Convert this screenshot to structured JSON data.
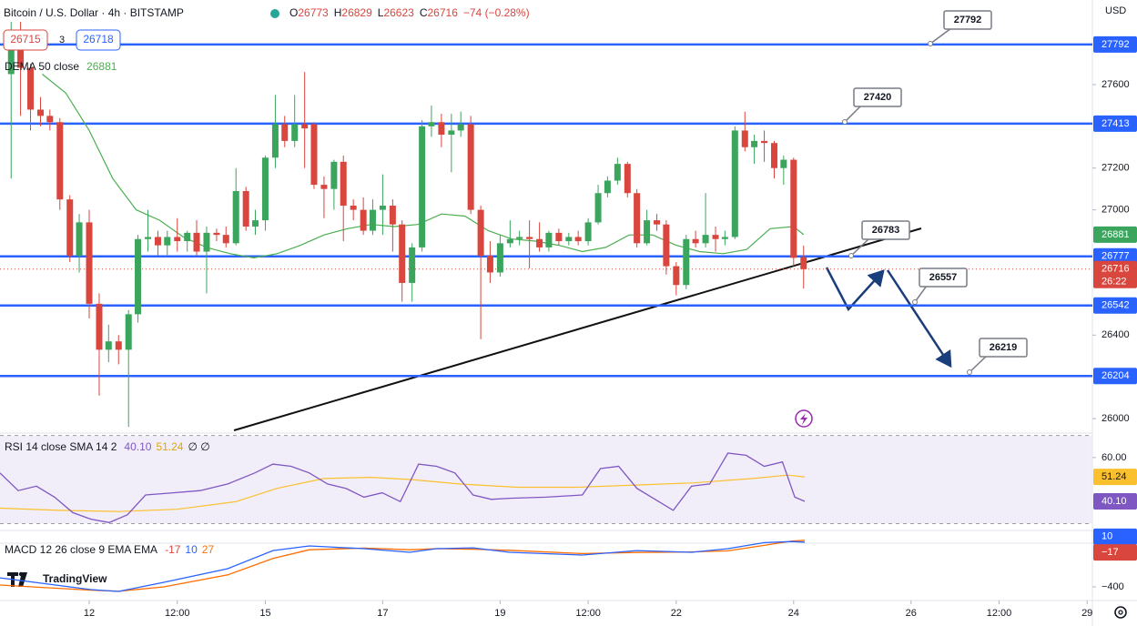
{
  "chart_data": {
    "type": "candlestick",
    "title": "Bitcoin / U.S. Dollar · 4h · BITSTAMP",
    "ohlc_labels": [
      "O",
      "H",
      "L",
      "C"
    ],
    "change": "−74 (−0.28%)",
    "bid": 26715,
    "spread": 3,
    "ask": 26718,
    "currency": "USD",
    "countdown": "26:22",
    "brand": "TradingView",
    "up_color": "#3ba55d",
    "down_color": "#d9463e",
    "x": [
      10.67,
      10.83,
      11,
      11.17,
      11.33,
      11.5,
      11.67,
      11.83,
      12,
      12.17,
      12.33,
      12.5,
      12.67,
      12.83,
      13,
      13.17,
      13.33,
      13.5,
      13.67,
      13.83,
      14,
      14.17,
      14.33,
      14.5,
      14.67,
      14.83,
      15,
      15.17,
      15.33,
      15.5,
      15.67,
      15.83,
      16,
      16.17,
      16.33,
      16.5,
      16.67,
      16.83,
      17,
      17.17,
      17.33,
      17.5,
      17.67,
      17.83,
      18,
      18.17,
      18.33,
      18.5,
      18.67,
      18.83,
      19,
      19.17,
      19.33,
      19.5,
      19.67,
      19.83,
      20,
      20.17,
      20.33,
      20.5,
      20.67,
      20.83,
      21,
      21.17,
      21.33,
      21.5,
      21.67,
      21.83,
      22,
      22.17,
      22.33,
      22.5,
      22.67,
      22.83,
      23,
      23.17,
      23.33,
      23.5,
      23.67,
      23.83,
      24,
      24.17
    ],
    "open": [
      27650,
      27850,
      27680,
      27480,
      27450,
      27420,
      27050,
      26780,
      26940,
      26550,
      26330,
      26370,
      26330,
      26500,
      26860,
      26870,
      26830,
      26870,
      26850,
      26890,
      26800,
      26890,
      26880,
      26840,
      27090,
      26920,
      26950,
      27250,
      27410,
      27330,
      27410,
      27410,
      27120,
      27100,
      27230,
      27020,
      27000,
      26900,
      27000,
      27020,
      26930,
      26650,
      26820,
      27400,
      27420,
      27360,
      27380,
      27410,
      27000,
      26780,
      26700,
      26840,
      26860,
      26870,
      26860,
      26820,
      26890,
      26850,
      26870,
      26850,
      26940,
      27080,
      27140,
      27220,
      27080,
      26840,
      26950,
      26930,
      26730,
      26640,
      26860,
      26840,
      26880,
      26860,
      26870,
      27380,
      27300,
      27330,
      27320,
      27200,
      27240,
      26773
    ],
    "high": [
      27900,
      27900,
      27700,
      27540,
      27480,
      27440,
      27070,
      26980,
      27000,
      26600,
      26450,
      26400,
      26520,
      26880,
      27000,
      26900,
      26900,
      26960,
      26900,
      26950,
      26920,
      26910,
      26920,
      27200,
      27110,
      27000,
      27260,
      27550,
      27450,
      27550,
      27660,
      27420,
      27160,
      27240,
      27260,
      27050,
      27060,
      27050,
      27170,
      27050,
      26950,
      26840,
      27430,
      27500,
      27460,
      27460,
      27470,
      27450,
      27020,
      26850,
      26880,
      26950,
      26900,
      26950,
      26940,
      26900,
      26910,
      26890,
      26900,
      26960,
      27120,
      27160,
      27250,
      27230,
      27100,
      27000,
      26980,
      26950,
      26750,
      26880,
      26900,
      27080,
      26920,
      26900,
      27400,
      27470,
      27360,
      27380,
      27330,
      27260,
      27250,
      26829
    ],
    "low": [
      27150,
      27450,
      27380,
      27400,
      27380,
      27000,
      26750,
      26700,
      26480,
      26110,
      26270,
      26260,
      25960,
      26460,
      26800,
      26780,
      26780,
      26800,
      26800,
      26780,
      26600,
      26850,
      26820,
      26830,
      26900,
      26880,
      26900,
      27200,
      27300,
      27300,
      27200,
      27100,
      26960,
      27000,
      26850,
      26950,
      26880,
      26880,
      26880,
      26800,
      26560,
      26560,
      26800,
      27350,
      27300,
      27180,
      27350,
      26980,
      26380,
      26650,
      26680,
      26820,
      26830,
      26720,
      26800,
      26800,
      26830,
      26830,
      26830,
      26830,
      26930,
      27060,
      27120,
      27060,
      26820,
      26830,
      26900,
      26690,
      26590,
      26620,
      26820,
      26820,
      26800,
      26830,
      26860,
      27280,
      27220,
      27230,
      27150,
      27120,
      26730,
      26623
    ],
    "close": [
      27850,
      27680,
      27480,
      27450,
      27420,
      27050,
      26780,
      26940,
      26550,
      26330,
      26370,
      26330,
      26500,
      26860,
      26870,
      26830,
      26870,
      26850,
      26890,
      26800,
      26890,
      26880,
      26840,
      27090,
      26920,
      26950,
      27250,
      27410,
      27330,
      27410,
      27390,
      27120,
      27100,
      27230,
      27020,
      27000,
      26900,
      27000,
      27020,
      26930,
      26650,
      26820,
      27400,
      27420,
      27360,
      27380,
      27410,
      27000,
      26780,
      26700,
      26840,
      26860,
      26870,
      26860,
      26820,
      26890,
      26850,
      26870,
      26850,
      26940,
      27080,
      27140,
      27220,
      27080,
      26840,
      26950,
      26930,
      26730,
      26640,
      26860,
      26840,
      26880,
      26860,
      26870,
      27380,
      27300,
      27330,
      27320,
      27200,
      27240,
      26770,
      26716
    ],
    "xlim": [
      10.48,
      29.09
    ],
    "xticks": [
      12,
      {
        "value": 13.5,
        "label": "12:00"
      },
      15,
      17,
      19,
      {
        "value": 20.5,
        "label": "12:00"
      },
      22,
      24,
      26,
      {
        "value": 27.5,
        "label": "12:00"
      },
      29
    ],
    "ylim": [
      25935,
      28005
    ],
    "yticks": [
      26000,
      26400,
      27000,
      27200,
      27600
    ],
    "levels": {
      "values": [
        27792,
        27413,
        26777,
        26542,
        26204
      ],
      "color": "#2962ff"
    },
    "callouts": [
      27792,
      27420,
      26783,
      26557,
      26219
    ],
    "dema": {
      "name": "DEMA 50 close",
      "color": "#4caf50",
      "x": [
        11.2,
        11.6,
        12.0,
        12.4,
        12.8,
        13.2,
        13.6,
        14.0,
        14.4,
        14.8,
        15.2,
        15.6,
        16.0,
        16.4,
        16.8,
        17.2,
        17.6,
        18.0,
        18.4,
        18.8,
        19.2,
        19.6,
        20.0,
        20.4,
        20.8,
        21.2,
        21.6,
        22.0,
        22.4,
        22.8,
        23.2,
        23.6,
        24.0,
        24.17
      ],
      "values": [
        27650,
        27560,
        27380,
        27150,
        27000,
        26950,
        26870,
        26820,
        26790,
        26770,
        26790,
        26830,
        26880,
        26910,
        26930,
        26920,
        26930,
        26980,
        26970,
        26900,
        26860,
        26850,
        26830,
        26800,
        26820,
        26880,
        26880,
        26830,
        26800,
        26790,
        26810,
        26910,
        26920,
        26881
      ]
    },
    "rsi": {
      "name": "RSI 14 close SMA 14 2",
      "ylim": [
        27.3,
        71.1
      ],
      "band": [
        30,
        70
      ],
      "yticks": [
        {
          "value": 60,
          "label": "60.00"
        }
      ],
      "rsi_color": "#7e57c2",
      "sma_color": "#fbc02d",
      "band_color": "#ede7f6",
      "x": [
        10.48,
        10.79,
        11.1,
        11.41,
        11.72,
        12.03,
        12.34,
        12.65,
        12.96,
        13.43,
        13.89,
        14.36,
        14.82,
        15.13,
        15.44,
        15.75,
        16.06,
        16.37,
        16.68,
        16.99,
        17.3,
        17.61,
        17.92,
        18.23,
        18.54,
        18.85,
        19.16,
        19.78,
        20.4,
        20.71,
        21.02,
        21.33,
        21.64,
        21.95,
        22.26,
        22.57,
        22.88,
        23.19,
        23.5,
        23.81,
        24.02,
        24.19
      ],
      "values": [
        53,
        45,
        47,
        42,
        35,
        32,
        30.5,
        34,
        43,
        44,
        45,
        48,
        53,
        57,
        56,
        53,
        48,
        46,
        42,
        44,
        40,
        57,
        56,
        53,
        43,
        41,
        41.5,
        42,
        43,
        55,
        56,
        46,
        41,
        36,
        47,
        48,
        62,
        61,
        56,
        58,
        42,
        40.1
      ],
      "sma_x": [
        10.48,
        11.5,
        12.5,
        13.5,
        14.5,
        15.2,
        16,
        16.8,
        17.5,
        18.3,
        19.3,
        20.3,
        21.3,
        22.3,
        23.3,
        23.9,
        24.19
      ],
      "sma_values": [
        37,
        36,
        35.5,
        36.5,
        40,
        46,
        50.5,
        51,
        50,
        48,
        46.5,
        46.5,
        47.5,
        48.5,
        50.5,
        52,
        51.24
      ],
      "legend_values": [
        {
          "value": 40.1,
          "label": "40.10"
        },
        51.24
      ],
      "legend_extra": "∅ ∅"
    },
    "macd": {
      "name": "MACD 12 26 close 9 EMA EMA",
      "ylim": [
        -525,
        117
      ],
      "yticks": [
        {
          "value": -400,
          "label": "−400"
        }
      ],
      "macd_color": "#2962ff",
      "signal_color": "#ff6d00",
      "x": [
        10.48,
        12.03,
        12.5,
        13.27,
        14.36,
        15.13,
        15.75,
        16.68,
        17.46,
        17.92,
        18.54,
        19.16,
        20.4,
        21.33,
        22.26,
        22.88,
        23.5,
        23.97,
        24.19
      ],
      "macd_values": [
        -317,
        -425,
        -442,
        -358,
        -233,
        -67,
        -25,
        -50,
        -83,
        -50,
        -42,
        -83,
        -108,
        -67,
        -83,
        -50,
        5,
        15,
        10
      ],
      "signal_values": [
        -383,
        -430,
        -440,
        -400,
        -290,
        -140,
        -60,
        -45,
        -60,
        -50,
        -55,
        -65,
        -95,
        -85,
        -80,
        -70,
        -20,
        20,
        27
      ],
      "legend_values": [
        -17,
        10,
        27
      ],
      "axis_labels": [
        10,
        {
          "value": -17,
          "label": "−17"
        }
      ]
    }
  }
}
